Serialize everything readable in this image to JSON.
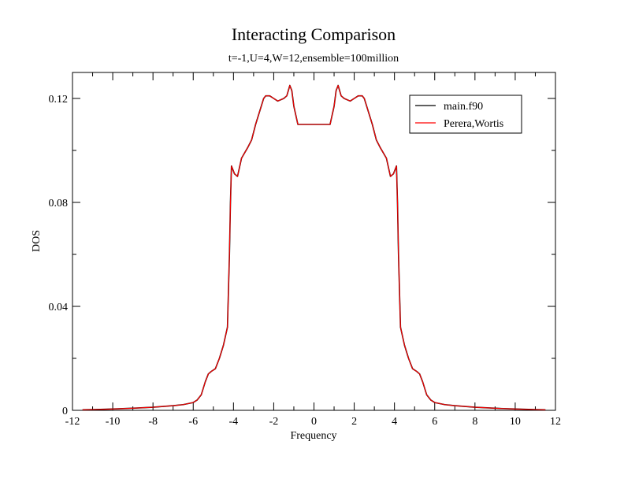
{
  "chart_data": {
    "type": "line",
    "title": "Interacting Comparison",
    "subtitle": "t=-1,U=4,W=12,ensemble=100million",
    "xlabel": "Frequency",
    "ylabel": "DOS",
    "xlim": [
      -12,
      12
    ],
    "ylim": [
      0,
      0.13
    ],
    "xticks": [
      -12,
      -10,
      -8,
      -6,
      -4,
      -2,
      0,
      2,
      4,
      6,
      8,
      10,
      12
    ],
    "xtick_labels": [
      "-12",
      "-10",
      "-8",
      "-6",
      "-4",
      "-2",
      "0",
      "2",
      "4",
      "6",
      "8",
      "10",
      "12"
    ],
    "yticks": [
      0,
      0.04,
      0.08,
      0.12
    ],
    "ytick_labels": [
      "0",
      "0.04",
      "0.08",
      "0.12"
    ],
    "grid": false,
    "legend_position": "top-right",
    "x": [
      0,
      0.3,
      0.6,
      0.8,
      1.0,
      1.1,
      1.2,
      1.35,
      1.5,
      1.8,
      2.0,
      2.2,
      2.4,
      2.5,
      2.7,
      2.9,
      3.1,
      3.3,
      3.6,
      3.8,
      3.95,
      4.1,
      4.15,
      4.2,
      4.3,
      4.5,
      4.7,
      4.9,
      5.1,
      5.25,
      5.4,
      5.6,
      5.8,
      6.0,
      6.5,
      7.0,
      8.0,
      9.0,
      10.0,
      11.0,
      11.5
    ],
    "series": [
      {
        "name": "main.f90",
        "color": "#000000",
        "values": [
          0.11,
          0.11,
          0.11,
          0.11,
          0.117,
          0.123,
          0.125,
          0.121,
          0.12,
          0.119,
          0.12,
          0.121,
          0.121,
          0.12,
          0.115,
          0.11,
          0.104,
          0.101,
          0.097,
          0.09,
          0.091,
          0.094,
          0.08,
          0.06,
          0.032,
          0.025,
          0.02,
          0.016,
          0.015,
          0.014,
          0.011,
          0.006,
          0.004,
          0.003,
          0.0022,
          0.0018,
          0.0012,
          0.0008,
          0.0005,
          0.0003,
          0.0002
        ]
      },
      {
        "name": "Perera,Wortis",
        "color": "#ff0000",
        "values": [
          0.11,
          0.11,
          0.11,
          0.11,
          0.117,
          0.123,
          0.125,
          0.121,
          0.12,
          0.119,
          0.12,
          0.121,
          0.121,
          0.12,
          0.115,
          0.11,
          0.104,
          0.101,
          0.097,
          0.09,
          0.091,
          0.094,
          0.08,
          0.06,
          0.032,
          0.025,
          0.02,
          0.016,
          0.015,
          0.014,
          0.011,
          0.006,
          0.004,
          0.003,
          0.0022,
          0.0018,
          0.0012,
          0.0008,
          0.0005,
          0.0003,
          0.0002
        ]
      }
    ],
    "symmetric_about_zero": true
  }
}
